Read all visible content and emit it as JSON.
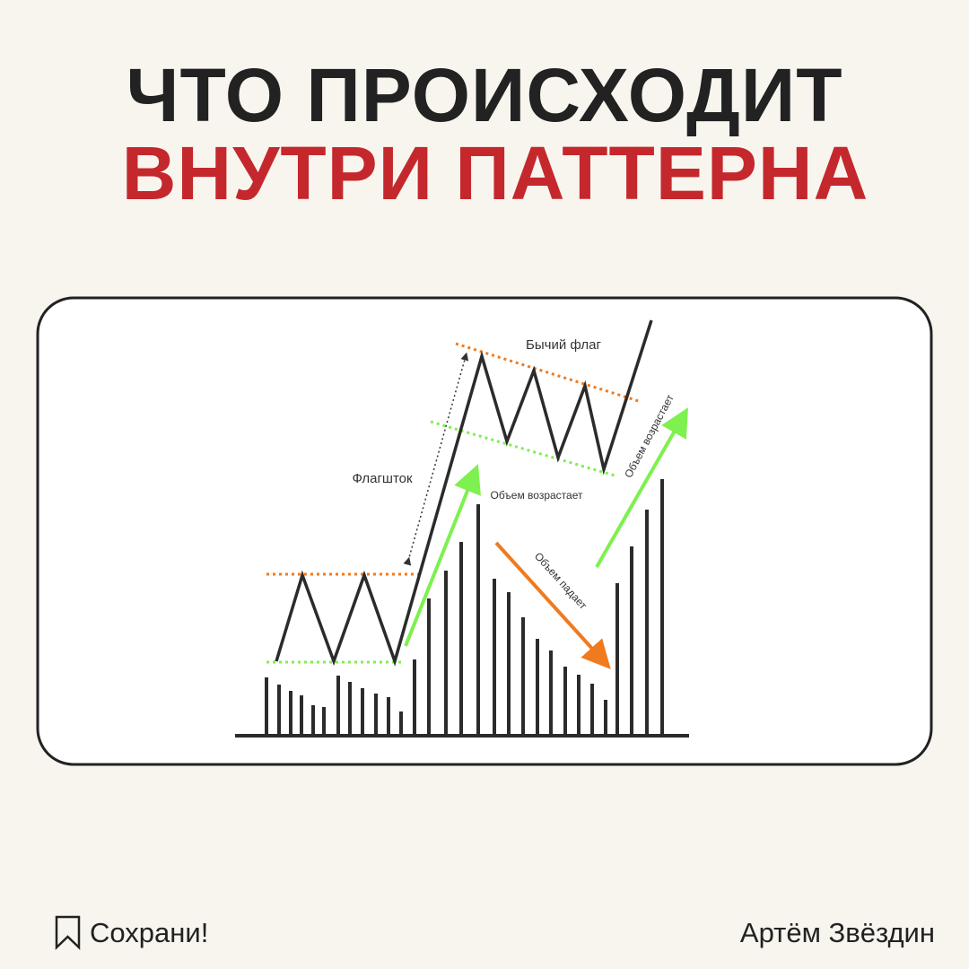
{
  "header": {
    "title_line1": "ЧТО ПРОИСХОДИТ",
    "title_line2": "ВНУТРИ ПАТТЕРНА"
  },
  "diagram": {
    "labels": {
      "bull_flag": "Бычий флаг",
      "flagpole": "Флагшток",
      "volume_up_1": "Объем возрастает",
      "volume_down": "Объем падает",
      "volume_up_2": "Объем возрастает"
    }
  },
  "footer": {
    "save": "Сохрани!",
    "author": "Артём Звёздин"
  }
}
